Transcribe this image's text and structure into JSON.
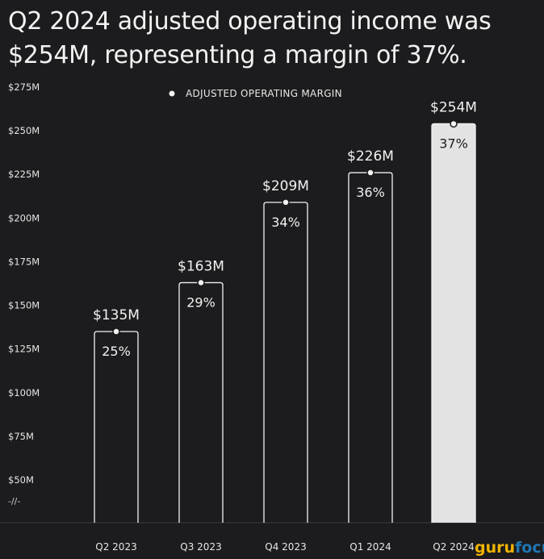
{
  "chart_data": {
    "type": "bar",
    "title": "Q2 2024 adjusted operating income was $254M, representing a margin of 37%.",
    "legend": [
      "ADJUSTED OPERATING MARGIN"
    ],
    "legend_placement": "top-center",
    "categories": [
      "Q2 2023",
      "Q3 2023",
      "Q4 2023",
      "Q1 2024",
      "Q2 2024"
    ],
    "values": [
      135,
      163,
      209,
      226,
      254
    ],
    "value_labels": [
      "$135M",
      "$163M",
      "$209M",
      "$226M",
      "$254M"
    ],
    "margin_labels": [
      "25%",
      "29%",
      "34%",
      "36%",
      "37%"
    ],
    "y_ticks": [
      "$50M",
      "$75M",
      "$100M",
      "$125M",
      "$150M",
      "$175M",
      "$200M",
      "$225M",
      "$250M",
      "$275M"
    ],
    "y_tick_values": [
      50,
      75,
      100,
      125,
      150,
      175,
      200,
      225,
      250,
      275
    ],
    "ylim": [
      50,
      275
    ],
    "axis_break": "-//-",
    "grid": false,
    "highlight_index": 4,
    "colors": {
      "background": "#1c1c1e",
      "bar_outline": "#f2f2f2",
      "highlight_fill": "#e3e3e3",
      "highlight_text": "#1c1c1e",
      "text": "#f2f2f2"
    }
  },
  "watermark": {
    "part1": "guru",
    "part2": "focus"
  }
}
